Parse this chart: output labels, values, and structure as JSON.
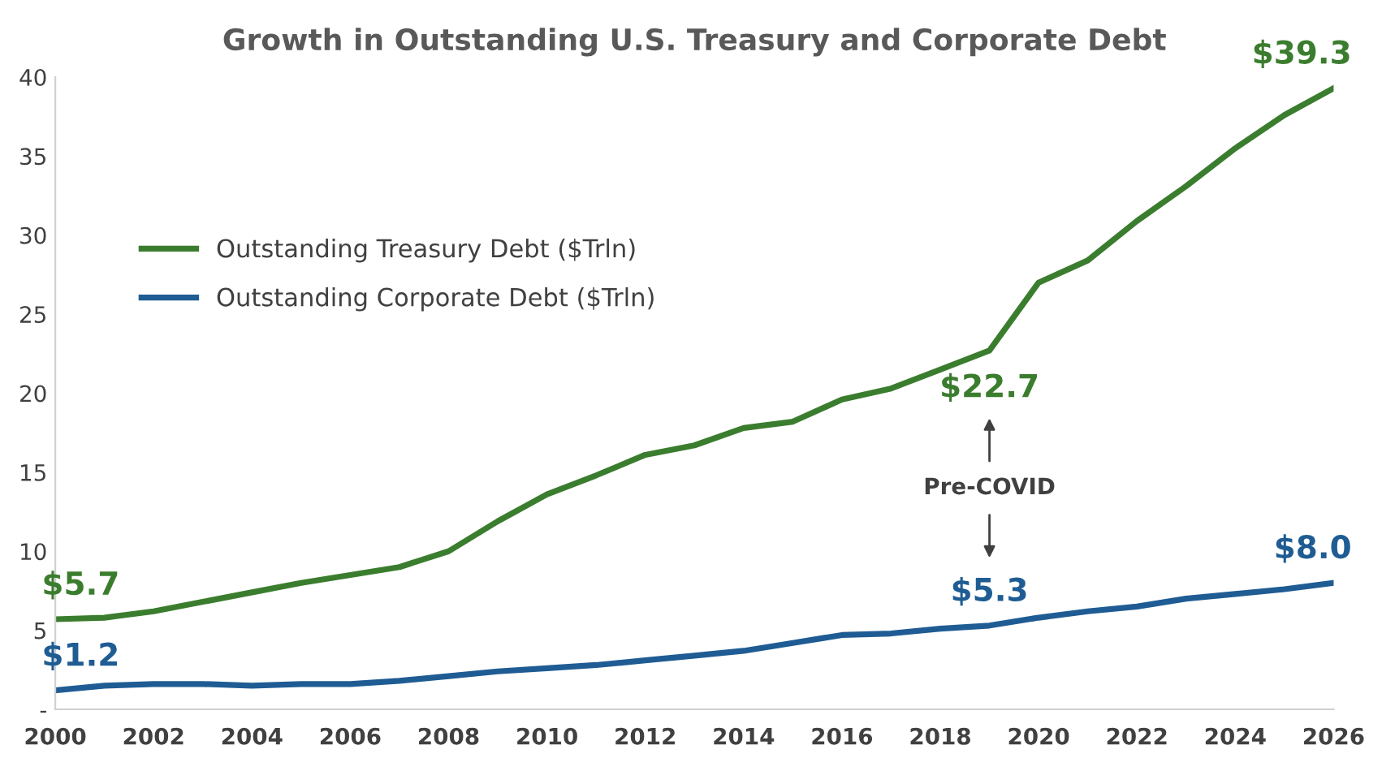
{
  "chart_data": {
    "type": "line",
    "title": "Growth in Outstanding U.S. Treasury and Corporate Debt",
    "x": [
      2000,
      2001,
      2002,
      2003,
      2004,
      2005,
      2006,
      2007,
      2008,
      2009,
      2010,
      2011,
      2012,
      2013,
      2014,
      2015,
      2016,
      2017,
      2018,
      2019,
      2020,
      2021,
      2022,
      2023,
      2024,
      2025,
      2026
    ],
    "series": [
      {
        "name": "Outstanding Treasury Debt ($Trln)",
        "color": "#3b7d2e",
        "values": [
          5.7,
          5.8,
          6.2,
          6.8,
          7.4,
          8.0,
          8.5,
          9.0,
          10.0,
          11.9,
          13.6,
          14.8,
          16.1,
          16.7,
          17.8,
          18.2,
          19.6,
          20.3,
          21.5,
          22.7,
          27.0,
          28.4,
          30.9,
          33.1,
          35.5,
          37.6,
          39.3
        ]
      },
      {
        "name": "Outstanding Corporate Debt ($Trln)",
        "color": "#1f5c93",
        "values": [
          1.2,
          1.5,
          1.6,
          1.6,
          1.5,
          1.6,
          1.6,
          1.8,
          2.1,
          2.4,
          2.6,
          2.8,
          3.1,
          3.4,
          3.7,
          4.2,
          4.7,
          4.8,
          5.1,
          5.3,
          5.8,
          6.2,
          6.5,
          7.0,
          7.3,
          7.6,
          8.0
        ]
      }
    ],
    "xlim": [
      2000,
      2026
    ],
    "xticks": [
      2000,
      2002,
      2004,
      2006,
      2008,
      2010,
      2012,
      2014,
      2016,
      2018,
      2020,
      2022,
      2024,
      2026
    ],
    "ylim": [
      0,
      40
    ],
    "yticks": [
      {
        "value": 0,
        "label": "-"
      },
      5,
      10,
      15,
      20,
      25,
      30,
      35,
      40
    ],
    "grid": false,
    "legend": "top left",
    "marker": "none",
    "line_style": "solid",
    "annotations": [
      {
        "text": "$5.7",
        "x": 2000,
        "y": 5.7
      },
      {
        "text": "$39.3",
        "x": 2026,
        "y": 39.3
      },
      {
        "text": "$22.7",
        "x": 2019,
        "y": 22.7
      },
      {
        "text": "$1.2",
        "x": 2000,
        "y": 1.2
      },
      {
        "text": "$5.3",
        "x": 2019,
        "y": 5.3
      },
      {
        "text": "$8.0",
        "x": 2026,
        "y": 8.0
      },
      "Pre-COVID"
    ]
  }
}
